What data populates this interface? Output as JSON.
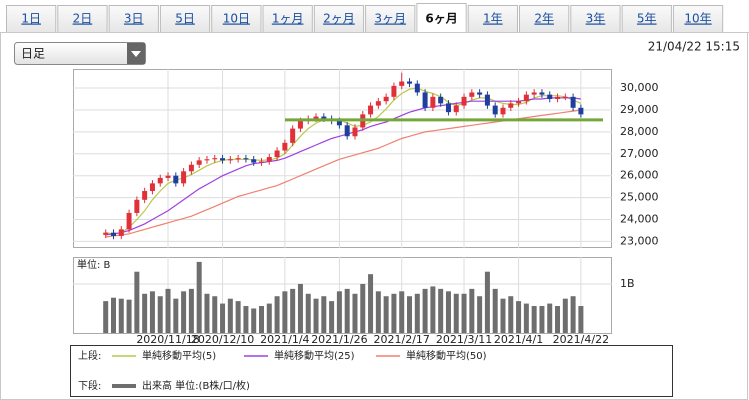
{
  "tabs": [
    "1日",
    "2日",
    "3日",
    "5日",
    "10日",
    "1ヶ月",
    "2ヶ月",
    "3ヶ月",
    "6ヶ月",
    "1年",
    "2年",
    "3年",
    "5年",
    "10年"
  ],
  "active_tab": 8,
  "dropdown": "日足",
  "timestamp": "21/04/22 15:15",
  "chart_data": [
    {
      "type": "candlestick",
      "legend_label": "上段:",
      "up_color": "#e0303a",
      "down_color": "#1f3f9e",
      "open": [
        23300,
        23400,
        23250,
        23550,
        24300,
        24900,
        25300,
        25650,
        25900,
        26000,
        25650,
        26200,
        26500,
        26700,
        26750,
        26800,
        26700,
        26750,
        26800,
        26750,
        26600,
        26650,
        26850,
        27150,
        27500,
        28150,
        28500,
        28600,
        28700,
        28600,
        28500,
        28300,
        27800,
        28200,
        28800,
        29200,
        29400,
        29600,
        30100,
        30300,
        30200,
        29800,
        29100,
        29600,
        29300,
        28900,
        29200,
        29600,
        29800,
        29700,
        29200,
        28800,
        29100,
        29300,
        29400,
        29700,
        29800,
        29700,
        29500,
        29600,
        29600,
        29100
      ],
      "high": [
        23550,
        23550,
        23700,
        24450,
        25050,
        25450,
        25800,
        26050,
        26150,
        26150,
        26350,
        26650,
        26850,
        26900,
        26950,
        26950,
        26900,
        26950,
        26950,
        26900,
        26800,
        27000,
        27300,
        27650,
        28300,
        28650,
        28750,
        28850,
        28850,
        28750,
        28650,
        28450,
        28350,
        28950,
        29350,
        29550,
        29750,
        30250,
        30700,
        30450,
        30350,
        29950,
        29750,
        29750,
        29450,
        29350,
        29750,
        29950,
        29950,
        29850,
        29350,
        29250,
        29450,
        29550,
        29850,
        29950,
        29950,
        29850,
        29750,
        29750,
        29750,
        29250
      ],
      "low": [
        23150,
        23100,
        23100,
        23400,
        24150,
        24750,
        25150,
        25500,
        25750,
        25500,
        25500,
        26050,
        26350,
        26550,
        26600,
        26550,
        26550,
        26600,
        26600,
        26450,
        26450,
        26500,
        26700,
        27000,
        27350,
        28000,
        28350,
        28450,
        28450,
        28350,
        28150,
        27650,
        27650,
        28050,
        28650,
        29050,
        29250,
        29450,
        29950,
        30050,
        29650,
        28950,
        28950,
        29150,
        28750,
        28750,
        29050,
        29450,
        29550,
        29050,
        28650,
        28650,
        28950,
        29150,
        29250,
        29550,
        29550,
        29350,
        29350,
        29450,
        28950,
        28650
      ],
      "close": [
        23400,
        23250,
        23550,
        24300,
        24900,
        25300,
        25650,
        25900,
        26000,
        25650,
        26200,
        26500,
        26700,
        26750,
        26800,
        26700,
        26750,
        26800,
        26750,
        26600,
        26650,
        26850,
        27150,
        27500,
        28150,
        28500,
        28600,
        28700,
        28600,
        28500,
        28300,
        27800,
        28200,
        28800,
        29200,
        29400,
        29600,
        30100,
        30300,
        30200,
        29800,
        29100,
        29600,
        29300,
        28900,
        29200,
        29600,
        29800,
        29700,
        29200,
        28800,
        29100,
        29300,
        29400,
        29700,
        29800,
        29700,
        29500,
        29600,
        29600,
        29100,
        28800
      ],
      "series": [
        {
          "name": "単純移動平均(5)",
          "color": "#b9c94e",
          "values": [
            23400,
            23350,
            23400,
            23650,
            24000,
            24400,
            24900,
            25300,
            25650,
            25800,
            25900,
            26050,
            26250,
            26450,
            26600,
            26700,
            26750,
            26750,
            26750,
            26720,
            26700,
            26720,
            26800,
            27000,
            27400,
            27800,
            28150,
            28400,
            28550,
            28600,
            28550,
            28400,
            28250,
            28300,
            28450,
            28700,
            29050,
            29450,
            29750,
            29950,
            30000,
            29850,
            29750,
            29600,
            29350,
            29200,
            29300,
            29450,
            29550,
            29550,
            29400,
            29300,
            29250,
            29250,
            29350,
            29550,
            29650,
            29650,
            29650,
            29600,
            29450,
            29300
          ]
        },
        {
          "name": "単純移動平均(25)",
          "color": "#a040e0",
          "values": [
            23300,
            23350,
            23400,
            23500,
            23650,
            23800,
            24000,
            24200,
            24400,
            24650,
            24900,
            25150,
            25400,
            25600,
            25800,
            26000,
            26150,
            26300,
            26450,
            26550,
            26600,
            26650,
            26700,
            26800,
            26950,
            27100,
            27250,
            27400,
            27550,
            27700,
            27800,
            27900,
            28000,
            28100,
            28250,
            28350,
            28450,
            28600,
            28750,
            28900,
            29000,
            29100,
            29150,
            29200,
            29250,
            29300,
            29350,
            29400,
            29400,
            29400,
            29400,
            29400,
            29400,
            29400,
            29450,
            29500,
            29500,
            29550,
            29550,
            29550,
            29550,
            29500
          ]
        },
        {
          "name": "単純移動平均(50)",
          "color": "#f08070",
          "values": [
            23200,
            23250,
            23300,
            23350,
            23450,
            23550,
            23650,
            23750,
            23850,
            23950,
            24050,
            24150,
            24300,
            24450,
            24600,
            24750,
            24900,
            25050,
            25150,
            25250,
            25350,
            25450,
            25550,
            25700,
            25850,
            26000,
            26150,
            26300,
            26450,
            26600,
            26750,
            26850,
            26950,
            27050,
            27150,
            27250,
            27400,
            27550,
            27700,
            27800,
            27900,
            28000,
            28050,
            28100,
            28150,
            28200,
            28250,
            28300,
            28350,
            28400,
            28450,
            28500,
            28550,
            28600,
            28650,
            28700,
            28750,
            28800,
            28850,
            28900,
            28950,
            29000
          ]
        }
      ],
      "hline": {
        "value": 28550,
        "color": "#74a63a"
      },
      "ylim": [
        22700,
        30870
      ],
      "yticks": [
        {
          "value": 23000,
          "label": "23,000"
        },
        {
          "value": 24000,
          "label": "24,000"
        },
        {
          "value": 25000,
          "label": "25,000"
        },
        {
          "value": 26000,
          "label": "26,000"
        },
        {
          "value": 27000,
          "label": "27,000"
        },
        {
          "value": 28000,
          "label": "28,000"
        },
        {
          "value": 29000,
          "label": "29,000"
        },
        {
          "value": 30000,
          "label": "30,000"
        }
      ],
      "grid": true
    },
    {
      "type": "bar",
      "legend_label": "下段:",
      "unit_label": "単位: B",
      "name": "出来高 単位:(B株/口/枚)",
      "color": "#6e6e6e",
      "categories": [
        null,
        null,
        null,
        null,
        null,
        null,
        null,
        null,
        "2020/11/18",
        null,
        null,
        null,
        null,
        null,
        null,
        "2020/12/10",
        null,
        null,
        null,
        null,
        null,
        null,
        null,
        "2021/1/4",
        null,
        null,
        null,
        null,
        null,
        null,
        "2021/1/26",
        null,
        null,
        null,
        null,
        null,
        null,
        null,
        "2021/2/17",
        null,
        null,
        null,
        null,
        null,
        null,
        null,
        "2021/3/11",
        null,
        null,
        null,
        null,
        null,
        null,
        "2021/4/1",
        null,
        null,
        null,
        null,
        null,
        null,
        null,
        "2021/4/22"
      ],
      "values": [
        0.65,
        0.72,
        0.7,
        0.68,
        1.25,
        0.8,
        0.85,
        0.75,
        0.9,
        0.7,
        0.85,
        0.9,
        1.45,
        0.8,
        0.75,
        0.6,
        0.7,
        0.65,
        0.55,
        0.5,
        0.55,
        0.6,
        0.75,
        0.85,
        0.9,
        1.0,
        0.8,
        0.7,
        0.75,
        0.65,
        0.85,
        0.9,
        0.8,
        1.0,
        1.2,
        0.85,
        0.75,
        0.8,
        0.85,
        0.75,
        0.8,
        0.9,
        0.95,
        0.9,
        0.85,
        0.8,
        0.8,
        0.9,
        0.75,
        1.25,
        0.9,
        0.7,
        0.75,
        0.65,
        0.6,
        0.55,
        0.55,
        0.6,
        0.55,
        0.7,
        0.75,
        0.55
      ],
      "ylim": [
        0,
        1.55
      ],
      "yticks": [
        {
          "value": 1,
          "label": "1B"
        }
      ],
      "grid": true
    }
  ]
}
